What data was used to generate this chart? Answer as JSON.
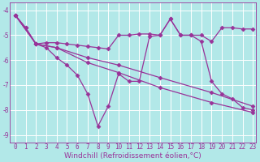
{
  "background_color": "#b2e8e8",
  "grid_color": "#ffffff",
  "line_color": "#993399",
  "line_width": 0.9,
  "marker": "D",
  "marker_size": 2.5,
  "xlabel": "Windchill (Refroidissement éolien,°C)",
  "xlabel_fontsize": 6.5,
  "tick_fontsize": 5.5,
  "xlim": [
    -0.5,
    23.3
  ],
  "ylim": [
    -9.3,
    -3.7
  ],
  "yticks": [
    -9,
    -8,
    -7,
    -6,
    -5,
    -4
  ],
  "xticks": [
    0,
    1,
    2,
    3,
    4,
    5,
    6,
    7,
    8,
    9,
    10,
    11,
    12,
    13,
    14,
    15,
    16,
    17,
    18,
    19,
    20,
    21,
    22,
    23
  ],
  "series_A": {
    "points": [
      [
        0,
        -4.2
      ],
      [
        1,
        -4.7
      ],
      [
        2,
        -5.35
      ],
      [
        3,
        -5.3
      ],
      [
        4,
        -5.3
      ],
      [
        5,
        -5.35
      ],
      [
        6,
        -5.4
      ],
      [
        7,
        -5.45
      ],
      [
        8,
        -5.5
      ],
      [
        9,
        -5.55
      ],
      [
        10,
        -5.0
      ],
      [
        11,
        -5.0
      ],
      [
        12,
        -4.95
      ],
      [
        13,
        -4.95
      ],
      [
        14,
        -5.0
      ],
      [
        15,
        -4.35
      ],
      [
        16,
        -5.0
      ],
      [
        17,
        -5.0
      ],
      [
        18,
        -5.0
      ],
      [
        19,
        -5.25
      ],
      [
        20,
        -4.7
      ],
      [
        21,
        -4.7
      ],
      [
        22,
        -4.75
      ],
      [
        23,
        -4.75
      ]
    ]
  },
  "series_B": {
    "points": [
      [
        0,
        -4.2
      ],
      [
        1,
        -4.7
      ],
      [
        2,
        -5.35
      ],
      [
        3,
        -5.5
      ],
      [
        4,
        -5.9
      ],
      [
        5,
        -6.2
      ],
      [
        6,
        -6.6
      ],
      [
        7,
        -7.35
      ],
      [
        8,
        -8.65
      ],
      [
        9,
        -7.85
      ],
      [
        10,
        -6.55
      ],
      [
        11,
        -6.85
      ],
      [
        12,
        -6.85
      ],
      [
        13,
        -5.05
      ],
      [
        14,
        -5.0
      ],
      [
        15,
        -4.35
      ],
      [
        16,
        -5.0
      ],
      [
        17,
        -5.0
      ],
      [
        18,
        -5.25
      ],
      [
        19,
        -6.85
      ],
      [
        20,
        -7.35
      ],
      [
        21,
        -7.55
      ],
      [
        22,
        -7.9
      ],
      [
        23,
        -8.0
      ]
    ]
  },
  "series_C": {
    "points": [
      [
        0,
        -4.2
      ],
      [
        2,
        -5.35
      ],
      [
        4,
        -5.5
      ],
      [
        7,
        -6.1
      ],
      [
        10,
        -6.5
      ],
      [
        14,
        -7.1
      ],
      [
        19,
        -7.7
      ],
      [
        23,
        -8.1
      ]
    ]
  },
  "series_D": {
    "points": [
      [
        0,
        -4.2
      ],
      [
        2,
        -5.35
      ],
      [
        4,
        -5.5
      ],
      [
        7,
        -5.9
      ],
      [
        10,
        -6.2
      ],
      [
        14,
        -6.7
      ],
      [
        19,
        -7.3
      ],
      [
        23,
        -7.85
      ]
    ]
  }
}
